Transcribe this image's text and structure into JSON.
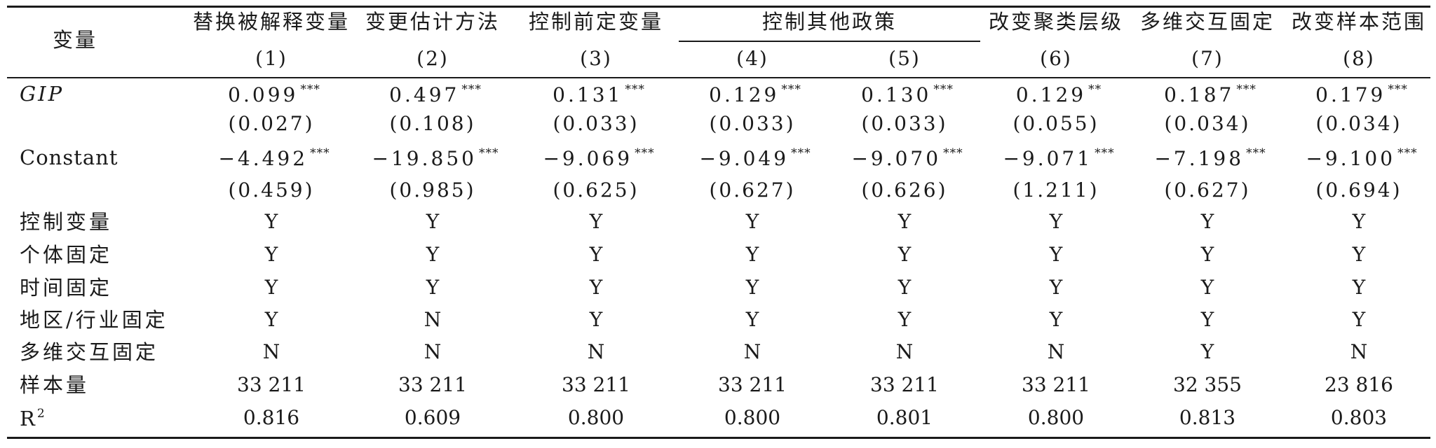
{
  "header": {
    "variable_label": "变量",
    "group_label": "控制其他政策",
    "columns": [
      {
        "title": "替换被解释变量",
        "num": "(1)"
      },
      {
        "title": "变更估计方法",
        "num": "(2)"
      },
      {
        "title": "控制前定变量",
        "num": "(3)"
      },
      {
        "title": "",
        "num": "(4)"
      },
      {
        "title": "",
        "num": "(5)"
      },
      {
        "title": "改变聚类层级",
        "num": "(6)"
      },
      {
        "title": "多维交互固定",
        "num": "(7)"
      },
      {
        "title": "改变样本范围",
        "num": "(8)"
      }
    ]
  },
  "rows": {
    "gip": {
      "label": "GIP",
      "coef": [
        "0.099",
        "0.497",
        "0.131",
        "0.129",
        "0.130",
        "0.129",
        "0.187",
        "0.179"
      ],
      "stars": [
        "***",
        "***",
        "***",
        "***",
        "***",
        "**",
        "***",
        "***"
      ],
      "se": [
        "(0.027)",
        "(0.108)",
        "(0.033)",
        "(0.033)",
        "(0.033)",
        "(0.055)",
        "(0.034)",
        "(0.034)"
      ]
    },
    "constant": {
      "label": "Constant",
      "coef": [
        "−4.492",
        "−19.850",
        "−9.069",
        "−9.049",
        "−9.070",
        "−9.071",
        "−7.198",
        "−9.100"
      ],
      "stars": [
        "***",
        "***",
        "***",
        "***",
        "***",
        "***",
        "***",
        "***"
      ],
      "se": [
        "(0.459)",
        "(0.985)",
        "(0.625)",
        "(0.627)",
        "(0.626)",
        "(1.211)",
        "(0.627)",
        "(0.694)"
      ]
    },
    "controls": {
      "label": "控制变量",
      "values": [
        "Y",
        "Y",
        "Y",
        "Y",
        "Y",
        "Y",
        "Y",
        "Y"
      ]
    },
    "individual_fe": {
      "label": "个体固定",
      "values": [
        "Y",
        "Y",
        "Y",
        "Y",
        "Y",
        "Y",
        "Y",
        "Y"
      ]
    },
    "time_fe": {
      "label": "时间固定",
      "values": [
        "Y",
        "Y",
        "Y",
        "Y",
        "Y",
        "Y",
        "Y",
        "Y"
      ]
    },
    "region_industry_fe": {
      "label": "地区/行业固定",
      "values": [
        "Y",
        "N",
        "Y",
        "Y",
        "Y",
        "Y",
        "Y",
        "Y"
      ]
    },
    "multi_interaction_fe": {
      "label": "多维交互固定",
      "values": [
        "N",
        "N",
        "N",
        "N",
        "N",
        "N",
        "Y",
        "N"
      ]
    },
    "sample_size": {
      "label": "样本量",
      "values": [
        "33 211",
        "33 211",
        "33 211",
        "33 211",
        "33 211",
        "33 211",
        "32 355",
        "23 816"
      ]
    },
    "r2": {
      "label": "R",
      "label_sup": "2",
      "values": [
        "0.816",
        "0.609",
        "0.800",
        "0.800",
        "0.801",
        "0.800",
        "0.813",
        "0.803"
      ]
    }
  }
}
